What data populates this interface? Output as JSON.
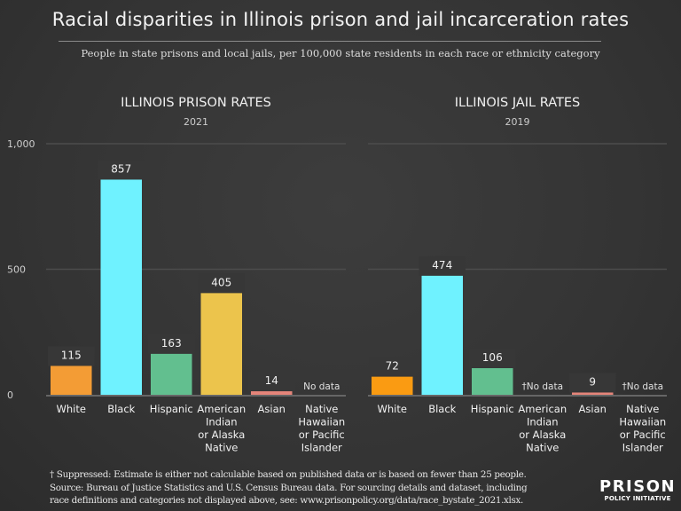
{
  "title": "Racial disparities in Illinois prison and jail incarceration rates",
  "subtitle": "People in state prisons and local jails, per 100,000 state residents in each race or ethnicity category",
  "chart_data": [
    {
      "type": "bar",
      "title": "ILLINOIS PRISON RATES",
      "subtitle": "2021",
      "categories": [
        "White",
        "Black",
        "Hispanic",
        "American Indian or Alaska Native",
        "Asian",
        "Native Hawaiian or Pacific Islander"
      ],
      "category_lines": [
        [
          "White"
        ],
        [
          "Black"
        ],
        [
          "Hispanic"
        ],
        [
          "American",
          "Indian",
          "or Alaska",
          "Native"
        ],
        [
          "Asian"
        ],
        [
          "Native",
          "Hawaiian",
          "or Pacific",
          "Islander"
        ]
      ],
      "values": [
        115,
        857,
        163,
        405,
        14,
        null
      ],
      "value_labels": [
        "115",
        "857",
        "163",
        "405",
        "14",
        "No data"
      ],
      "colors": [
        "#f39c35",
        "#6ff2ff",
        "#62bf8f",
        "#ecc44c",
        "#e5857a",
        "#888888"
      ],
      "ylim": [
        0,
        1000
      ],
      "yticks": [
        0,
        500,
        1000
      ],
      "ytick_labels": [
        "0",
        "500",
        "1,000"
      ],
      "grid": true
    },
    {
      "type": "bar",
      "title": "ILLINOIS JAIL RATES",
      "subtitle": "2019",
      "categories": [
        "White",
        "Black",
        "Hispanic",
        "American Indian or Alaska Native",
        "Asian",
        "Native Hawaiian or Pacific Islander"
      ],
      "category_lines": [
        [
          "White"
        ],
        [
          "Black"
        ],
        [
          "Hispanic"
        ],
        [
          "American",
          "Indian",
          "or Alaska",
          "Native"
        ],
        [
          "Asian"
        ],
        [
          "Native",
          "Hawaiian",
          "or Pacific",
          "Islander"
        ]
      ],
      "values": [
        72,
        474,
        106,
        null,
        9,
        null
      ],
      "value_labels": [
        "72",
        "474",
        "106",
        "†No data",
        "9",
        "†No data"
      ],
      "colors": [
        "#fa9b12",
        "#6ff2ff",
        "#62bf8f",
        "#ecc44c",
        "#e5857a",
        "#888888"
      ],
      "ylim": [
        0,
        1000
      ],
      "grid": true
    }
  ],
  "footnote": [
    "† Suppressed: Estimate is either not calculable based on published data or is based on fewer than 25 people.",
    "Source: Bureau of Justice Statistics and U.S. Census Bureau data. For sourcing details and dataset, including",
    "race definitions and categories not displayed above, see: www.prisonpolicy.org/data/race_bystate_2021.xlsx."
  ],
  "logo": {
    "line1": "PRISON",
    "line2": "POLICY INITIATIVE"
  }
}
